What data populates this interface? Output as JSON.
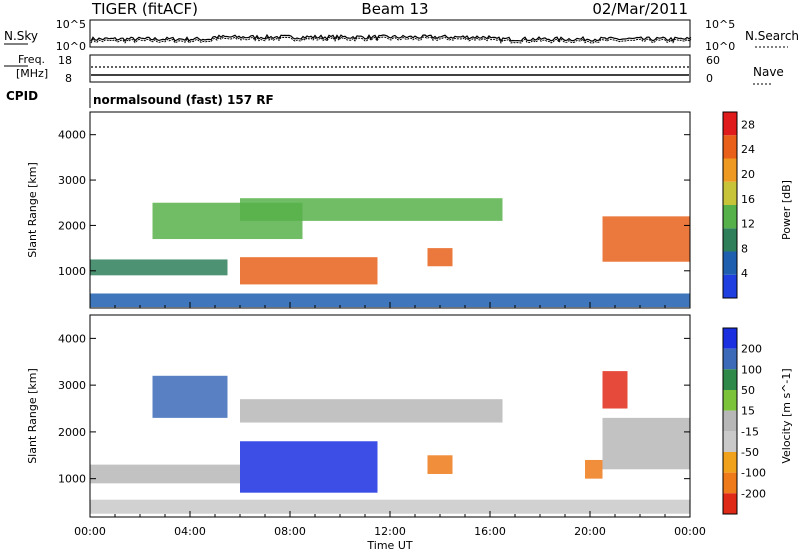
{
  "header": {
    "station": "TIGER (fitACF)",
    "beam": "Beam 13",
    "date": "02/Mar/2011"
  },
  "nsky_panel": {
    "left_label": "N.Sky",
    "right_label": "N.Search",
    "left_ticks": [
      "10^5",
      "10^0"
    ],
    "right_ticks": [
      "10^5",
      "10^0"
    ]
  },
  "freq_panel": {
    "left_label_line1": "Freq.",
    "left_label_line2": "[MHz]",
    "right_label": "Nave",
    "left_ticks": [
      "18",
      "8"
    ],
    "right_ticks": [
      "60",
      "0"
    ]
  },
  "cpid_panel": {
    "label": "CPID",
    "program": "normalsound (fast) 157 RF"
  },
  "x_axis": {
    "label": "Time UT",
    "ticks": [
      "00:00",
      "04:00",
      "08:00",
      "12:00",
      "16:00",
      "20:00",
      "00:00"
    ]
  },
  "colors": {
    "power_scale": [
      "#1f3fe0",
      "#1f5fb0",
      "#2e7f5a",
      "#57b14a",
      "#c7c43a",
      "#ee9a22",
      "#e8601a",
      "#e01b1b"
    ],
    "velocity_scale": [
      "#1a2fe0",
      "#3c6ab8",
      "#2f8a4a",
      "#7bc43a",
      "#b7b7b7",
      "#c9c9c9",
      "#f0a21c",
      "#ee7a1a",
      "#e02a18"
    ]
  },
  "chart_data": [
    {
      "type": "heatmap",
      "title": "",
      "xlabel": "Time UT",
      "ylabel": "Slant Range [km]",
      "xlim": [
        "00:00",
        "24:00"
      ],
      "ylim": [
        180,
        4500
      ],
      "y_ticks": [
        "1000",
        "2000",
        "3000",
        "4000"
      ],
      "colorbar": {
        "label": "Power [dB]",
        "ticks": [
          "4",
          "8",
          "12",
          "16",
          "20",
          "24",
          "28"
        ],
        "range": [
          0,
          30
        ]
      },
      "regions": [
        {
          "t_start": 0.0,
          "t_end": 24.0,
          "r_start": 200,
          "r_end": 500,
          "value": 6
        },
        {
          "t_start": 0.0,
          "t_end": 5.5,
          "r_start": 900,
          "r_end": 1250,
          "value": 11
        },
        {
          "t_start": 2.5,
          "t_end": 8.5,
          "r_start": 1700,
          "r_end": 2500,
          "value": 14
        },
        {
          "t_start": 6.0,
          "t_end": 11.5,
          "r_start": 700,
          "r_end": 1300,
          "value": 26
        },
        {
          "t_start": 6.0,
          "t_end": 16.5,
          "r_start": 2100,
          "r_end": 2600,
          "value": 13
        },
        {
          "t_start": 13.5,
          "t_end": 14.5,
          "r_start": 1100,
          "r_end": 1500,
          "value": 24
        },
        {
          "t_start": 20.5,
          "t_end": 24.0,
          "r_start": 1200,
          "r_end": 2200,
          "value": 25
        }
      ]
    },
    {
      "type": "heatmap",
      "title": "",
      "xlabel": "Time UT",
      "ylabel": "Slant Range [km]",
      "xlim": [
        "00:00",
        "24:00"
      ],
      "ylim": [
        180,
        4500
      ],
      "y_ticks": [
        "1000",
        "2000",
        "3000",
        "4000"
      ],
      "colorbar": {
        "label": "Velocity [m s^-1]",
        "ticks": [
          "200",
          "100",
          "50",
          "15",
          "-15",
          "-50",
          "-100",
          "-200"
        ],
        "range": [
          -250,
          250
        ]
      },
      "regions": [
        {
          "t_start": 0.0,
          "t_end": 24.0,
          "r_start": 250,
          "r_end": 550,
          "value": -40
        },
        {
          "t_start": 0.0,
          "t_end": 6.0,
          "r_start": 900,
          "r_end": 1300,
          "value": 0
        },
        {
          "t_start": 2.5,
          "t_end": 5.5,
          "r_start": 2300,
          "r_end": 3200,
          "value": 180
        },
        {
          "t_start": 6.0,
          "t_end": 11.5,
          "r_start": 700,
          "r_end": 1800,
          "value": 210
        },
        {
          "t_start": 6.0,
          "t_end": 16.5,
          "r_start": 2200,
          "r_end": 2700,
          "value": 0
        },
        {
          "t_start": 13.5,
          "t_end": 14.5,
          "r_start": 1100,
          "r_end": 1500,
          "value": -120
        },
        {
          "t_start": 19.8,
          "t_end": 20.5,
          "r_start": 1000,
          "r_end": 1400,
          "value": -120
        },
        {
          "t_start": 20.5,
          "t_end": 24.0,
          "r_start": 1200,
          "r_end": 2300,
          "value": 0
        },
        {
          "t_start": 20.5,
          "t_end": 21.5,
          "r_start": 2500,
          "r_end": 3300,
          "value": -220
        }
      ]
    }
  ]
}
